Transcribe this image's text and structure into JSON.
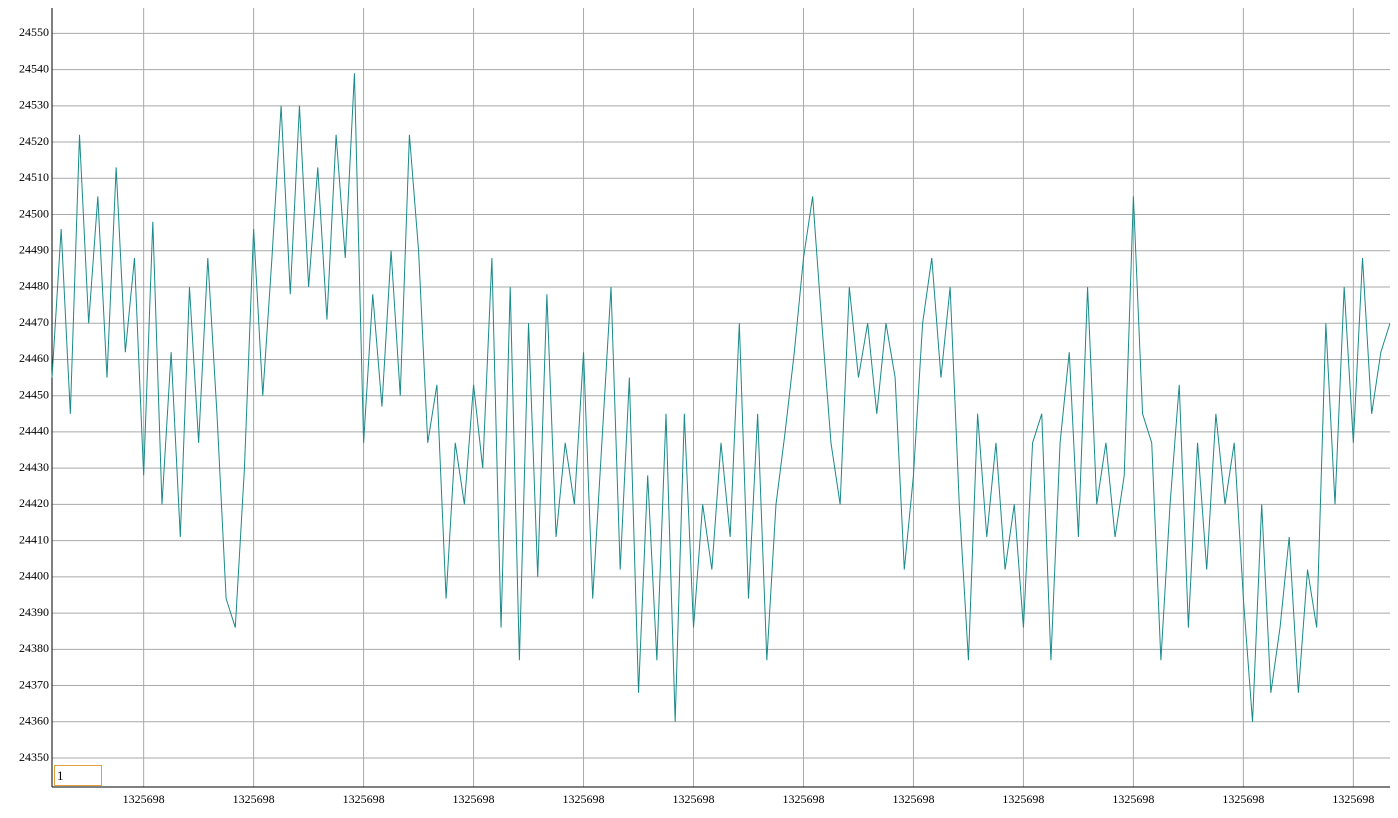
{
  "chart_data": {
    "type": "line",
    "color": "#1a8a8a",
    "grid": true,
    "ylim": [
      24342,
      24557
    ],
    "yticks": [
      24350,
      24360,
      24370,
      24380,
      24390,
      24400,
      24410,
      24420,
      24430,
      24440,
      24450,
      24460,
      24470,
      24480,
      24490,
      24500,
      24510,
      24520,
      24530,
      24540,
      24550
    ],
    "xlim": [
      0,
      146
    ],
    "xticks": [
      {
        "value": 10,
        "label": "1325698"
      },
      {
        "value": 22,
        "label": "1325698"
      },
      {
        "value": 34,
        "label": "1325698"
      },
      {
        "value": 46,
        "label": "1325698"
      },
      {
        "value": 58,
        "label": "1325698"
      },
      {
        "value": 70,
        "label": "1325698"
      },
      {
        "value": 82,
        "label": "1325698"
      },
      {
        "value": 94,
        "label": "1325698"
      },
      {
        "value": 106,
        "label": "1325698"
      },
      {
        "value": 118,
        "label": "1325698"
      },
      {
        "value": 130,
        "label": "1325698"
      },
      {
        "value": 142,
        "label": "1325698"
      }
    ],
    "values": [
      24455,
      24496,
      24445,
      24522,
      24470,
      24505,
      24455,
      24513,
      24462,
      24488,
      24428,
      24498,
      24420,
      24462,
      24411,
      24480,
      24437,
      24488,
      24445,
      24394,
      24386,
      24430,
      24496,
      24450,
      24488,
      24530,
      24478,
      24530,
      24480,
      24513,
      24471,
      24522,
      24488,
      24539,
      24437,
      24478,
      24447,
      24490,
      24450,
      24522,
      24490,
      24437,
      24453,
      24394,
      24437,
      24420,
      24453,
      24430,
      24488,
      24386,
      24480,
      24377,
      24470,
      24400,
      24478,
      24411,
      24437,
      24420,
      24462,
      24394,
      24437,
      24480,
      24402,
      24455,
      24368,
      24428,
      24377,
      24445,
      24360,
      24445,
      24386,
      24420,
      24402,
      24437,
      24411,
      24470,
      24394,
      24445,
      24377,
      24420,
      24440,
      24462,
      24488,
      24505,
      24470,
      24437,
      24420,
      24480,
      24455,
      24470,
      24445,
      24470,
      24455,
      24402,
      24428,
      24470,
      24488,
      24455,
      24480,
      24420,
      24377,
      24445,
      24411,
      24437,
      24402,
      24420,
      24386,
      24437,
      24445,
      24377,
      24437,
      24462,
      24411,
      24480,
      24420,
      24437,
      24411,
      24428,
      24505,
      24445,
      24437,
      24377,
      24420,
      24453,
      24386,
      24437,
      24402,
      24445,
      24420,
      24437,
      24394,
      24360,
      24420,
      24368,
      24386,
      24411,
      24368,
      24402,
      24386,
      24470,
      24420,
      24480,
      24437,
      24488,
      24445,
      24462,
      24470
    ]
  },
  "input": {
    "value": "1"
  }
}
